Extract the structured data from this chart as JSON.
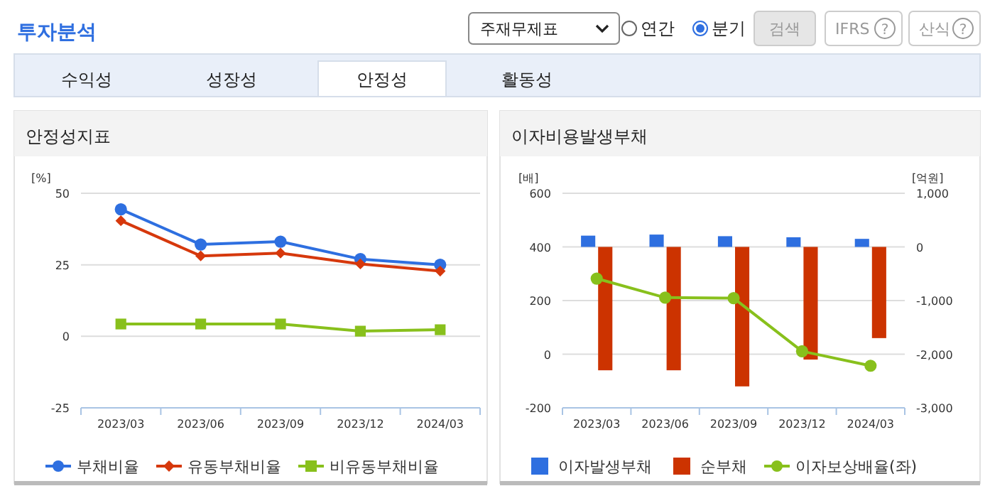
{
  "chart_data": [
    {
      "type": "other",
      "title": "투자분석",
      "annotations": [
        "주재무제표",
        "연간",
        "분기",
        "검색",
        "IFRS",
        "산식",
        "수익성",
        "성장성",
        "안정성",
        "활동성",
        "?",
        "?"
      ]
    },
    {
      "type": "line",
      "title": "안정성지표",
      "ylabel": "[%]",
      "categories": [
        "2023/03",
        "2023/06",
        "2023/09",
        "2023/12",
        "2024/03"
      ],
      "series": [
        {
          "name": "부채비율",
          "color": "#2e6fe0",
          "marker": "circle",
          "values": [
            44.4,
            32.1,
            33.1,
            27.0,
            25.0
          ]
        },
        {
          "name": "유동부채비율",
          "color": "#d6380c",
          "marker": "diamond",
          "values": [
            40.4,
            28.1,
            29.1,
            25.3,
            22.8
          ]
        },
        {
          "name": "비유동부채비율",
          "color": "#88c01c",
          "marker": "square",
          "values": [
            4.3,
            4.3,
            4.3,
            1.8,
            2.3
          ]
        }
      ],
      "ylim": [
        -25,
        50
      ],
      "yticks": [
        -25,
        0,
        25,
        50
      ],
      "grid": "y",
      "legend": "bottom"
    },
    {
      "type": "bar",
      "title": "이자비용발생부채",
      "ylabel": "[배]",
      "y2label": "[억원]",
      "categories": [
        "2023/03",
        "2023/06",
        "2023/09",
        "2023/12",
        "2024/03"
      ],
      "series": [
        {
          "name": "이자발생부채",
          "color": "#2e6fe0",
          "axis": "y2",
          "values": [
            210,
            230,
            200,
            180,
            150
          ]
        },
        {
          "name": "순부채",
          "color": "#cc3300",
          "axis": "y2",
          "values": [
            -2300,
            -2300,
            -2600,
            -2100,
            -1700
          ]
        },
        {
          "name": "이자보상배율(좌)",
          "type": "line",
          "color": "#88c01c",
          "marker": "circle",
          "values": [
            282,
            211,
            209,
            11,
            -43
          ]
        }
      ],
      "ylim": [
        -200,
        600
      ],
      "yticks": [
        -200,
        0,
        200,
        400,
        600
      ],
      "y2lim": [
        -3000,
        1000
      ],
      "y2ticks": [
        {
          "value": -3000,
          "label": "-3,000"
        },
        {
          "value": -2000,
          "label": "-2,000"
        },
        {
          "value": -1000,
          "label": "-1,000"
        },
        0,
        {
          "value": 1000,
          "label": "1,000"
        }
      ],
      "grid": "y",
      "legend": "bottom"
    }
  ]
}
